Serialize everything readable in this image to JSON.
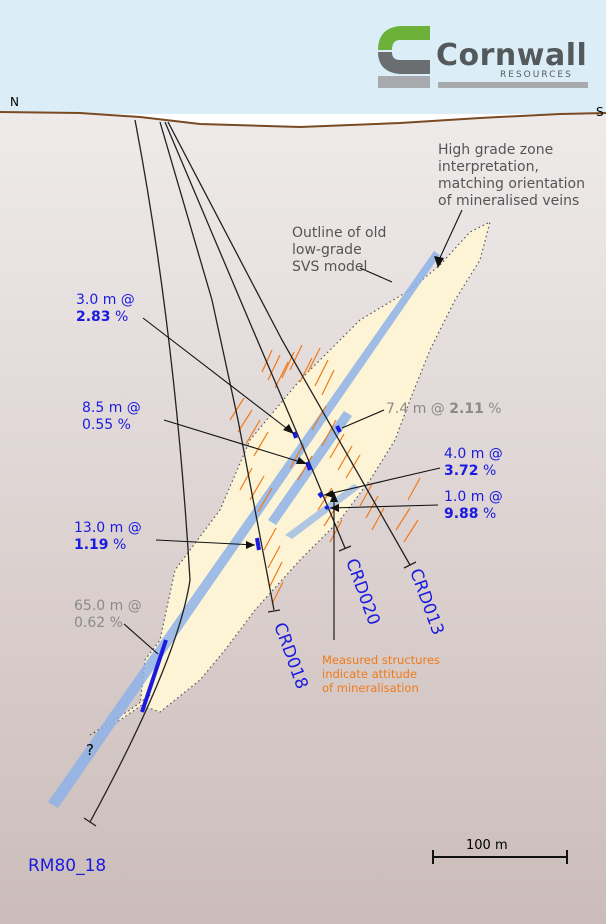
{
  "logo": {
    "name": "Cornwall",
    "tagline": "RESOURCES"
  },
  "directions": {
    "north": "N",
    "south": "S"
  },
  "annotations": {
    "high_grade": [
      "High grade zone",
      "interpretation,",
      "matching orientation",
      "of mineralised veins"
    ],
    "old_model": [
      "Outline of old",
      "low-grade",
      "SVS model"
    ],
    "structures": [
      "Measured structures",
      "indicate attitude",
      "of mineralisation"
    ],
    "unknown": "?"
  },
  "intercepts": [
    {
      "length": "3.0 m @",
      "grade": "2.83",
      "unit": " %"
    },
    {
      "length": "8.5 m @",
      "grade": "0.55",
      "unit": " %"
    },
    {
      "length": "13.0 m @",
      "grade": "1.19",
      "unit": " %"
    },
    {
      "length": "65.0 m @",
      "grade": "0.62",
      "unit": " %"
    },
    {
      "length": "7.4 m @ ",
      "grade": "2.11",
      "unit": " %"
    },
    {
      "length": "4.0 m @",
      "grade": "3.72",
      "unit": " %"
    },
    {
      "length": "1.0 m @",
      "grade": "9.88",
      "unit": " %"
    }
  ],
  "drillholes": [
    "CRD018",
    "CRD020",
    "CRD013",
    "RM80_18"
  ],
  "scale_bar": "100 m",
  "colors": {
    "sky": "#dbeef8",
    "ground_top": "#efebeb",
    "ground_bottom": "#cbbcb9",
    "surface_line": "#7a4a22",
    "old_model_fill": "#fdf4d6",
    "high_grade_band": "#8db2e8",
    "intercept": "#1a1ae0",
    "structures": "#f07a1a"
  }
}
